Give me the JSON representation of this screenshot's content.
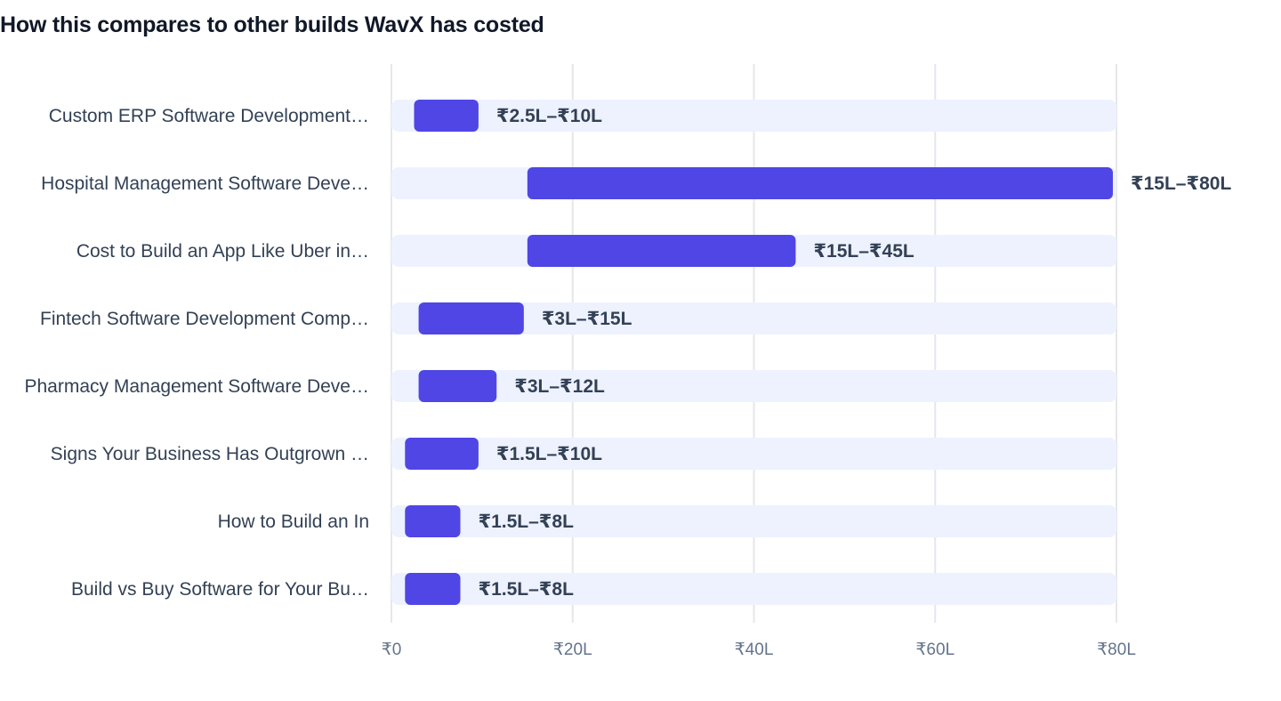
{
  "title": "How this compares to other builds WavX has costed",
  "chart_data": {
    "type": "bar",
    "orientation": "horizontal-range",
    "title": "How this compares to other builds WavX has costed",
    "xlabel": "",
    "ylabel": "",
    "unit": "₹ Lakh",
    "xlim": [
      0,
      80
    ],
    "x_ticks": [
      0,
      20,
      40,
      60,
      80
    ],
    "x_tick_labels": [
      "₹0",
      "₹20L",
      "₹40L",
      "₹60L",
      "₹80L"
    ],
    "grid": "vertical",
    "colors": {
      "bar": "#4f46e5",
      "track": "#eef2ff",
      "grid": "#e5e7eb",
      "label": "#334155",
      "tick": "#64748b"
    },
    "categories": [
      "Custom ERP Software Development…",
      "Hospital Management Software Deve…",
      "Cost to Build an App Like Uber in…",
      "Fintech Software Development Comp…",
      "Pharmacy Management Software Deve…",
      "Signs Your Business Has Outgrown …",
      "How to Build an In",
      "Build vs Buy Software for Your Bu…"
    ],
    "ranges": [
      [
        2.5,
        10
      ],
      [
        15,
        80
      ],
      [
        15,
        45
      ],
      [
        3,
        15
      ],
      [
        3,
        12
      ],
      [
        1.5,
        10
      ],
      [
        1.5,
        8
      ],
      [
        1.5,
        8
      ]
    ],
    "value_labels": [
      "₹2.5L–₹10L",
      "₹15L–₹80L",
      "₹15L–₹45L",
      "₹3L–₹15L",
      "₹3L–₹12L",
      "₹1.5L–₹10L",
      "₹1.5L–₹8L",
      "₹1.5L–₹8L"
    ]
  }
}
